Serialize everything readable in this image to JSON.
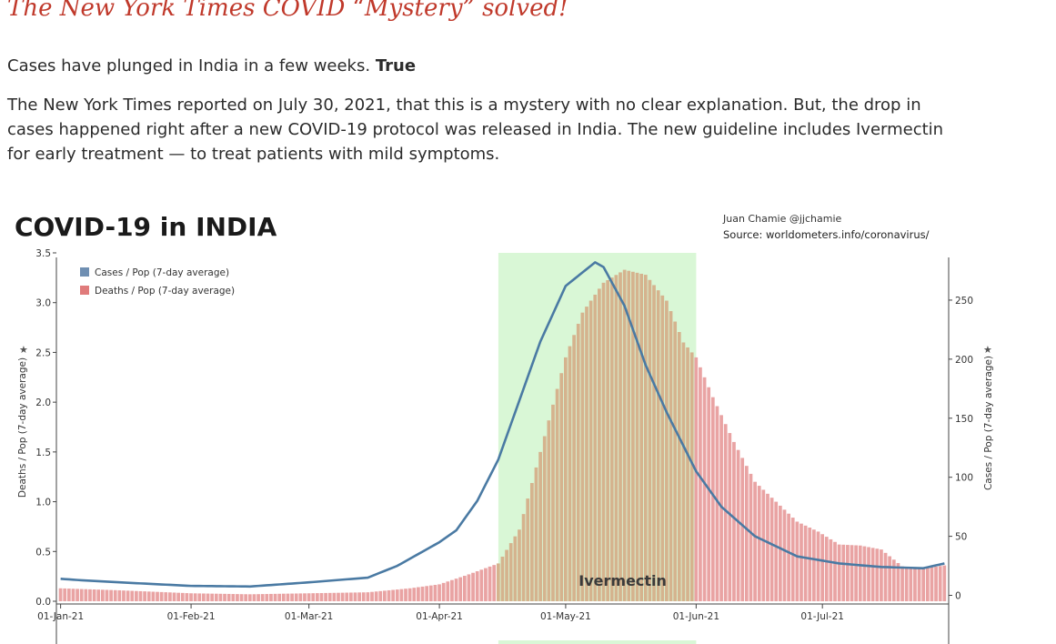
{
  "article": {
    "headline": "The New York Times COVID “Mystery” solved!",
    "claim_text": "Cases have plunged in India in a few weeks.",
    "claim_verdict": "True",
    "body": "The New York Times reported on July 30, 2021, that this is a mystery with no clear explanation. But, the drop in cases happened right after a new COVID-19 protocol was released in India. The new guideline includes Ivermectin for early treatment — to treat patients with mild symptoms."
  },
  "chart_data": {
    "type": "bar",
    "title": "COVID-19 in INDIA",
    "credit": "Juan Chamie @jjchamie",
    "source": "Source: worldometers.info/coronavirus/",
    "x_range": [
      "2020-12-31",
      "2021-07-31"
    ],
    "x_ticks": [
      {
        "date": "2021-01-01",
        "label": "01-Jan-21"
      },
      {
        "date": "2021-02-01",
        "label": "01-Feb-21"
      },
      {
        "date": "2021-03-01",
        "label": "01-Mar-21"
      },
      {
        "date": "2021-04-01",
        "label": "01-Apr-21"
      },
      {
        "date": "2021-05-01",
        "label": "01-May-21"
      },
      {
        "date": "2021-06-01",
        "label": "01-Jun-21"
      },
      {
        "date": "2021-07-01",
        "label": "01-Jul-21"
      }
    ],
    "y_left": {
      "label": "Deaths / Pop (7-day average)",
      "ylim": [
        0,
        3.5
      ],
      "ticks": [
        {
          "value": 0,
          "label": "0.0"
        },
        {
          "value": 0.5,
          "label": "0.5"
        },
        {
          "value": 1,
          "label": "1.0"
        },
        {
          "value": 1.5,
          "label": "1.5"
        },
        {
          "value": 2,
          "label": "2.0"
        },
        {
          "value": 2.5,
          "label": "2.5"
        },
        {
          "value": 3,
          "label": "3.0"
        },
        {
          "value": 3.5,
          "label": "3.5"
        }
      ]
    },
    "y_right": {
      "label": "Cases / Pop (7-day average)",
      "ylim": [
        -5,
        290
      ],
      "ticks": [
        {
          "value": 0,
          "label": "0"
        },
        {
          "value": 50,
          "label": "50"
        },
        {
          "value": 100,
          "label": "100"
        },
        {
          "value": 150,
          "label": "150"
        },
        {
          "value": 200,
          "label": "200"
        },
        {
          "value": 250,
          "label": "250"
        }
      ]
    },
    "legend": {
      "placement": "top-left",
      "entries": [
        {
          "label": "Cases / Pop (7-day average)",
          "color": "#6f8fb2"
        },
        {
          "label": "Deaths / Pop (7-day average)",
          "color": "#e07b7b"
        }
      ]
    },
    "annotation": {
      "label": "Ivermectin",
      "start": "2021-04-15",
      "end": "2021-06-01",
      "color": "#d9f7d6"
    },
    "series": [
      {
        "name": "Deaths / Pop (7-day average)",
        "kind": "bar",
        "axis": "left",
        "color": "#e9a3a3",
        "shaded_color": "#d5b38e",
        "points": [
          [
            "2021-01-01",
            0.13
          ],
          [
            "2021-01-15",
            0.11
          ],
          [
            "2021-02-01",
            0.08
          ],
          [
            "2021-02-15",
            0.07
          ],
          [
            "2021-03-01",
            0.08
          ],
          [
            "2021-03-15",
            0.09
          ],
          [
            "2021-03-25",
            0.13
          ],
          [
            "2021-04-01",
            0.17
          ],
          [
            "2021-04-08",
            0.27
          ],
          [
            "2021-04-15",
            0.38
          ],
          [
            "2021-04-20",
            0.72
          ],
          [
            "2021-04-25",
            1.5
          ],
          [
            "2021-05-01",
            2.45
          ],
          [
            "2021-05-05",
            2.9
          ],
          [
            "2021-05-10",
            3.2
          ],
          [
            "2021-05-15",
            3.33
          ],
          [
            "2021-05-20",
            3.28
          ],
          [
            "2021-05-25",
            3.02
          ],
          [
            "2021-05-29",
            2.6
          ],
          [
            "2021-06-01",
            2.45
          ],
          [
            "2021-06-05",
            2.05
          ],
          [
            "2021-06-10",
            1.6
          ],
          [
            "2021-06-15",
            1.2
          ],
          [
            "2021-06-20",
            1.0
          ],
          [
            "2021-06-25",
            0.8
          ],
          [
            "2021-06-30",
            0.7
          ],
          [
            "2021-07-05",
            0.57
          ],
          [
            "2021-07-10",
            0.56
          ],
          [
            "2021-07-15",
            0.52
          ],
          [
            "2021-07-20",
            0.35
          ],
          [
            "2021-07-25",
            0.33
          ],
          [
            "2021-07-30",
            0.36
          ]
        ]
      },
      {
        "name": "Cases / Pop (7-day average)",
        "kind": "line",
        "axis": "right",
        "color": "#4a7aa3",
        "points": [
          [
            "2021-01-01",
            14
          ],
          [
            "2021-01-05",
            13
          ],
          [
            "2021-01-15",
            11
          ],
          [
            "2021-02-01",
            8
          ],
          [
            "2021-02-15",
            7.5
          ],
          [
            "2021-03-01",
            11
          ],
          [
            "2021-03-15",
            15
          ],
          [
            "2021-03-22",
            25
          ],
          [
            "2021-04-01",
            45
          ],
          [
            "2021-04-05",
            55
          ],
          [
            "2021-04-10",
            80
          ],
          [
            "2021-04-15",
            115
          ],
          [
            "2021-04-20",
            165
          ],
          [
            "2021-04-25",
            215
          ],
          [
            "2021-05-01",
            262
          ],
          [
            "2021-05-08",
            282
          ],
          [
            "2021-05-10",
            278
          ],
          [
            "2021-05-15",
            245
          ],
          [
            "2021-05-20",
            195
          ],
          [
            "2021-05-25",
            155
          ],
          [
            "2021-06-01",
            105
          ],
          [
            "2021-06-07",
            75
          ],
          [
            "2021-06-15",
            50
          ],
          [
            "2021-06-25",
            33
          ],
          [
            "2021-07-05",
            27
          ],
          [
            "2021-07-15",
            24
          ],
          [
            "2021-07-25",
            23
          ],
          [
            "2021-07-30",
            27
          ]
        ]
      }
    ]
  }
}
